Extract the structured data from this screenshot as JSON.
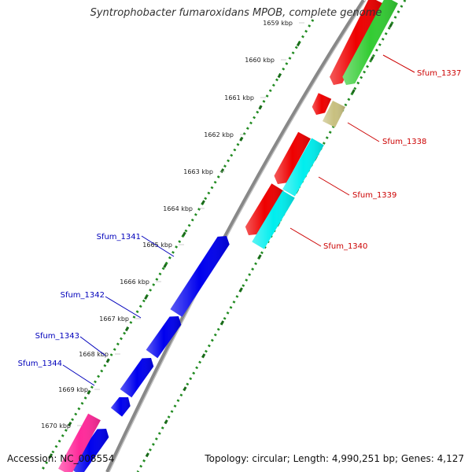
{
  "title": "Syntrophobacter fumaroxidans MPOB, complete genome",
  "accession_text": "Accession: NC_008554",
  "topology_text": "Topology: circular; Length: 4,990,251 bp; Genes: 4,127",
  "ticks": [
    "1659 kbp",
    "1660 kbp",
    "1661 kbp",
    "1662 kbp",
    "1663 kbp",
    "1664 kbp",
    "1665 kbp",
    "1666 kbp",
    "1667 kbp",
    "1668 kbp",
    "1669 kbp",
    "1670 kbp"
  ],
  "genes": [
    {
      "id": "Sfum_1337",
      "strand": "reverse",
      "color": "#cc0000"
    },
    {
      "id": "Sfum_1338",
      "strand": "reverse",
      "color": "#cc0000"
    },
    {
      "id": "Sfum_1339",
      "strand": "reverse",
      "color": "#cc0000"
    },
    {
      "id": "Sfum_1340",
      "strand": "reverse",
      "color": "#cc0000"
    },
    {
      "id": "Sfum_1341",
      "strand": "forward",
      "color": "#0000bb"
    },
    {
      "id": "Sfum_1342",
      "strand": "forward",
      "color": "#0000bb"
    },
    {
      "id": "Sfum_1343",
      "strand": "forward",
      "color": "#0000bb"
    },
    {
      "id": "Sfum_1344",
      "strand": "forward",
      "color": "#0000bb"
    }
  ],
  "colors": {
    "forward_cds": "#0000ee",
    "reverse_cds": "#ee0000",
    "green_feature": "#33cc33",
    "olive_feature": "#c8c080",
    "cyan_feature": "#00eeee",
    "pink_feature": "#ff2a9a",
    "backbone": "#888888",
    "gc_dots": "#228b22"
  }
}
